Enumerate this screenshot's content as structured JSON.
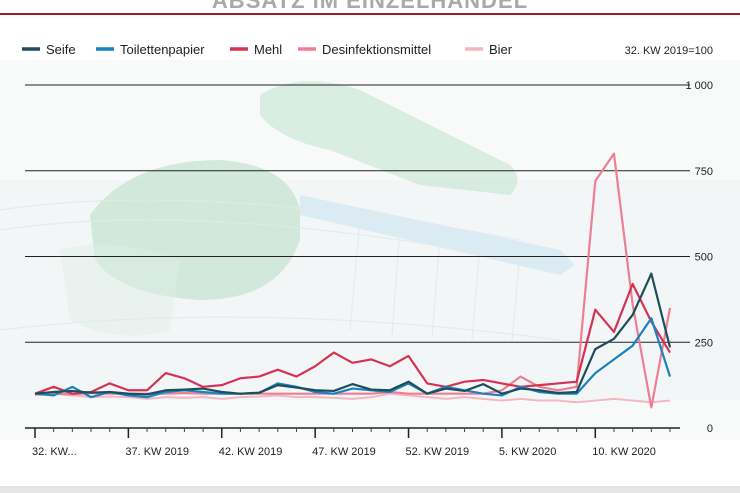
{
  "colors": {
    "background_tint": "#eef3f5",
    "top_border": "#9b1b30",
    "gridline": "#222222"
  },
  "chart_data": {
    "type": "line",
    "title": "ABSATZ IM EINZELHANDEL",
    "index_note": "32. KW 2019=100",
    "ylim": [
      0,
      1000
    ],
    "yticks": [
      0,
      250,
      500,
      750,
      1000
    ],
    "ytick_labels": [
      "0",
      "250",
      "500",
      "750",
      "1 000"
    ],
    "grid": true,
    "legend_position": "top",
    "x_tick_labels": [
      {
        "index": 0,
        "label": "32. KW..."
      },
      {
        "index": 5,
        "label": "37. KW 2019"
      },
      {
        "index": 10,
        "label": "42. KW 2019"
      },
      {
        "index": 15,
        "label": "47. KW 2019"
      },
      {
        "index": 20,
        "label": "52. KW 2019"
      },
      {
        "index": 25,
        "label": "5. KW 2020"
      },
      {
        "index": 30,
        "label": "10. KW 2020"
      }
    ],
    "x": [
      0,
      1,
      2,
      3,
      4,
      5,
      6,
      7,
      8,
      9,
      10,
      11,
      12,
      13,
      14,
      15,
      16,
      17,
      18,
      19,
      20,
      21,
      22,
      23,
      24,
      25,
      26,
      27,
      28,
      29,
      30,
      31,
      32,
      33,
      34
    ],
    "series": [
      {
        "name": "Seife",
        "color": "#1d4e5a",
        "values": [
          100,
          105,
          108,
          103,
          105,
          100,
          98,
          110,
          112,
          115,
          105,
          100,
          103,
          125,
          118,
          110,
          108,
          128,
          112,
          110,
          135,
          100,
          115,
          108,
          128,
          100,
          115,
          110,
          102,
          105,
          230,
          260,
          330,
          450,
          235
        ]
      },
      {
        "name": "Toilettenpapier",
        "color": "#1a82c0",
        "values": [
          100,
          95,
          120,
          90,
          105,
          95,
          90,
          105,
          110,
          105,
          100,
          100,
          102,
          130,
          120,
          105,
          100,
          115,
          110,
          105,
          130,
          100,
          120,
          110,
          100,
          95,
          120,
          105,
          100,
          100,
          160,
          200,
          240,
          320,
          150
        ]
      },
      {
        "name": "Mehl",
        "color": "#d63354",
        "values": [
          100,
          120,
          100,
          105,
          130,
          110,
          110,
          160,
          145,
          120,
          125,
          145,
          150,
          170,
          150,
          180,
          220,
          190,
          200,
          180,
          210,
          130,
          120,
          135,
          140,
          130,
          120,
          125,
          130,
          135,
          345,
          280,
          420,
          310,
          220
        ]
      },
      {
        "name": "Desinfektionsmittel",
        "color": "#ee7f92",
        "values": [
          100,
          100,
          98,
          102,
          100,
          100,
          100,
          100,
          102,
          100,
          100,
          100,
          100,
          100,
          100,
          100,
          100,
          100,
          100,
          105,
          100,
          100,
          100,
          100,
          100,
          110,
          150,
          120,
          110,
          120,
          720,
          800,
          360,
          60,
          350
        ]
      },
      {
        "name": "Bier",
        "color": "#f4b7c1",
        "values": [
          95,
          100,
          95,
          90,
          92,
          90,
          85,
          90,
          88,
          90,
          85,
          90,
          92,
          95,
          90,
          90,
          88,
          85,
          90,
          100,
          95,
          90,
          85,
          90,
          85,
          80,
          85,
          80,
          80,
          75,
          80,
          85,
          80,
          75,
          80
        ]
      }
    ]
  }
}
